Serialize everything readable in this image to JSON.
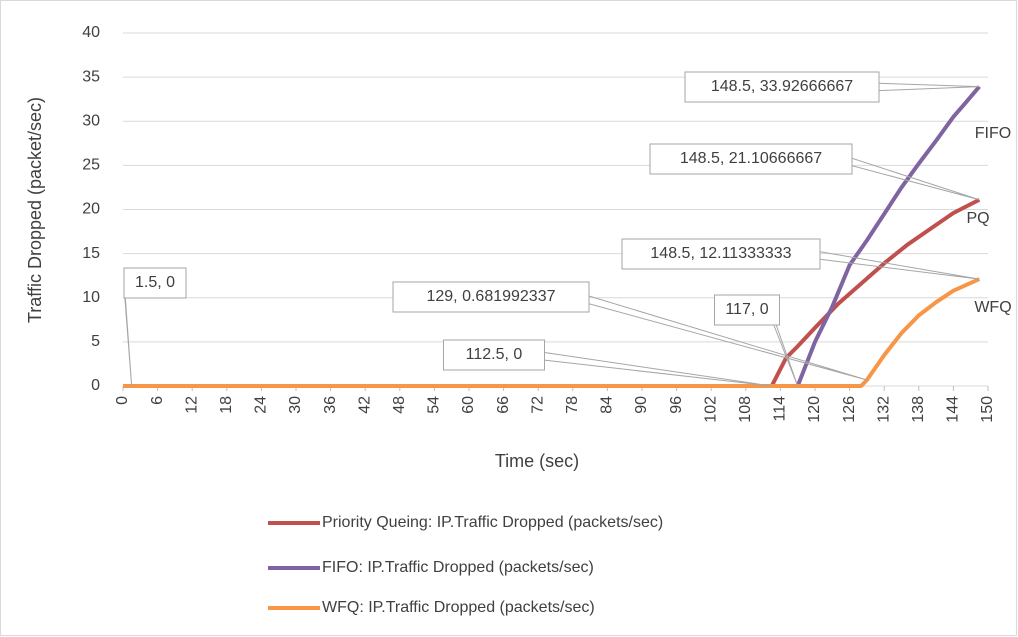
{
  "chart_data": {
    "type": "line",
    "x_label": "Time (sec)",
    "y_label": "Traffic Dropped (packet/sec)",
    "xlim": [
      0,
      150
    ],
    "xticks": [
      0,
      6,
      12,
      18,
      24,
      30,
      36,
      42,
      48,
      54,
      60,
      66,
      72,
      78,
      84,
      90,
      96,
      102,
      108,
      114,
      120,
      126,
      132,
      138,
      144,
      150
    ],
    "ylim": [
      0,
      40
    ],
    "yticks": [
      0,
      5,
      10,
      15,
      20,
      25,
      30,
      35,
      40
    ],
    "grid": true,
    "legend": "bottom",
    "series": [
      {
        "name": "Priority Queing: IP.Traffic Dropped (packets/sec)",
        "end_label": "PQ",
        "color": "#c0504d",
        "x": [
          0,
          112.5,
          115,
          117,
          120,
          124,
          128,
          132,
          136,
          140,
          144,
          148.5
        ],
        "values": [
          0,
          0,
          3.2,
          4.5,
          6.6,
          9.3,
          11.6,
          13.9,
          16,
          17.8,
          19.6,
          21.10666667
        ]
      },
      {
        "name": "FIFO: IP.Traffic Dropped (packets/sec)",
        "end_label": "FIFO",
        "color": "#8064a2",
        "x": [
          0,
          117,
          120,
          123,
          126,
          129,
          132,
          135,
          138,
          141,
          144,
          146,
          148.5
        ],
        "values": [
          0,
          0,
          5,
          9,
          13.7,
          16.5,
          19.5,
          22.5,
          25.2,
          27.8,
          30.5,
          32,
          33.92666667
        ]
      },
      {
        "name": "WFQ: IP.Traffic Dropped (packets/sec)",
        "end_label": "WFQ",
        "color": "#f79646",
        "x": [
          0,
          128,
          129,
          132,
          135,
          138,
          141,
          144,
          148.5
        ],
        "values": [
          0,
          0,
          0.681992337,
          3.5,
          6,
          8,
          9.5,
          10.8,
          12.11333333
        ]
      }
    ],
    "annotations": [
      {
        "label": "1.5, 0",
        "x": 1.5,
        "y": 0
      },
      {
        "label": "112.5, 0",
        "x": 112.5,
        "y": 0
      },
      {
        "label": "117, 0",
        "x": 117,
        "y": 0
      },
      {
        "label": "129, 0.681992337",
        "x": 129,
        "y": 0.681992337
      },
      {
        "label": "148.5, 33.92666667",
        "x": 148.5,
        "y": 33.92666667
      },
      {
        "label": "148.5, 21.10666667",
        "x": 148.5,
        "y": 21.10666667
      },
      {
        "label": "148.5, 12.11333333",
        "x": 148.5,
        "y": 12.11333333
      }
    ]
  }
}
